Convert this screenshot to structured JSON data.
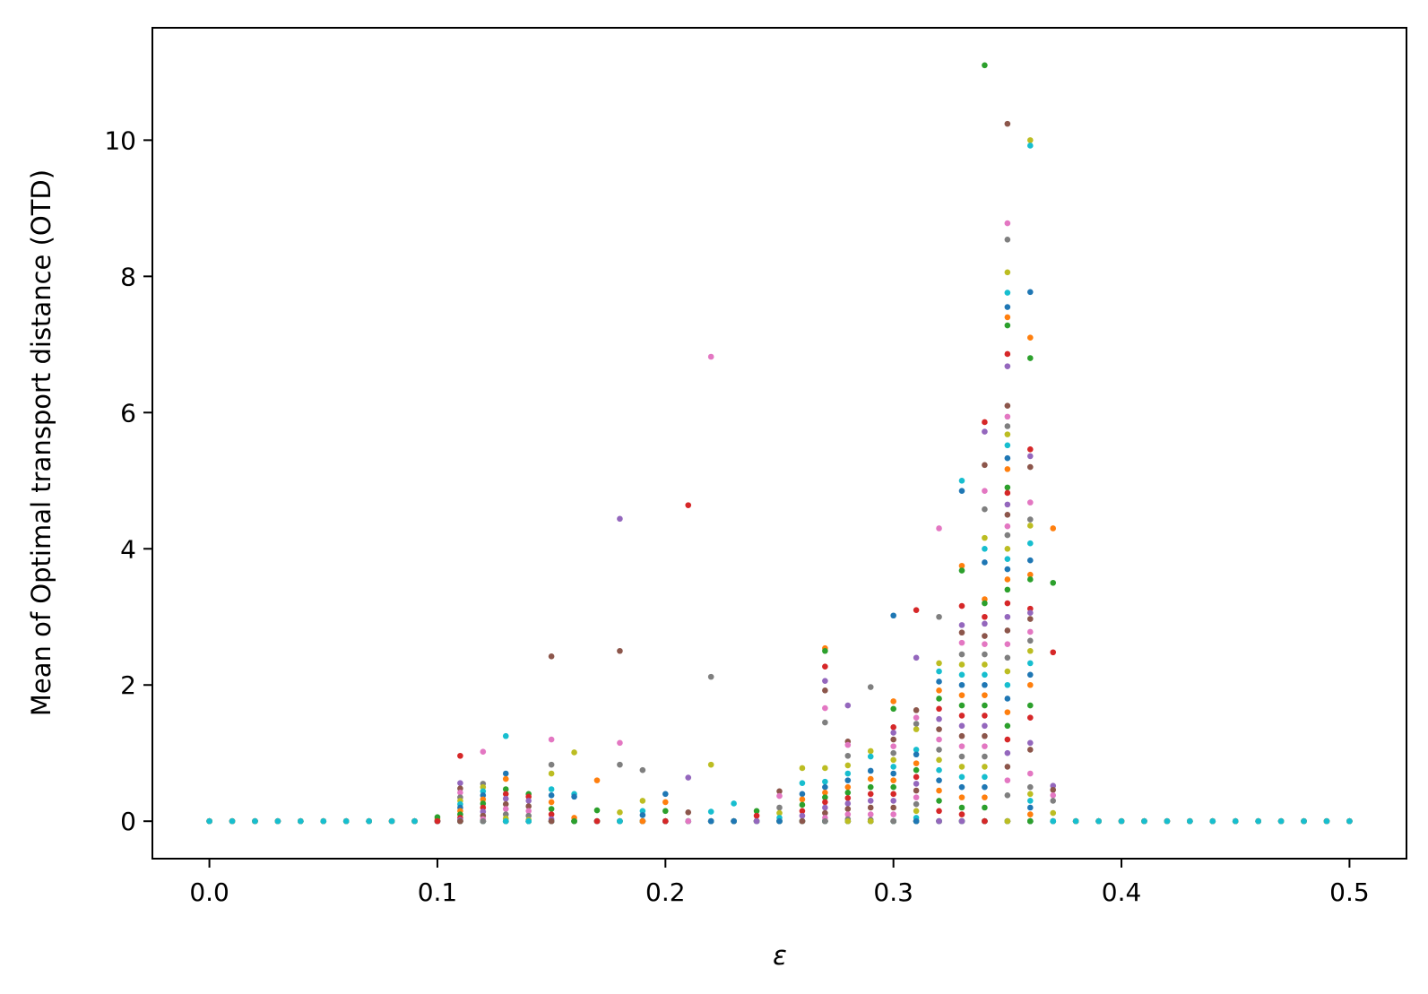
{
  "chart_data": {
    "type": "scatter",
    "title": "",
    "xlabel": "ε",
    "ylabel": "Mean of Optimal transport distance (OTD)",
    "xlim": [
      -0.025,
      0.525
    ],
    "ylim": [
      -0.55,
      11.65
    ],
    "xticks": [
      0.0,
      0.1,
      0.2,
      0.3,
      0.4,
      0.5
    ],
    "xtick_labels": [
      "0.0",
      "0.1",
      "0.2",
      "0.3",
      "0.4",
      "0.5"
    ],
    "yticks": [
      0,
      2,
      4,
      6,
      8,
      10
    ],
    "ytick_labels": [
      "0",
      "2",
      "4",
      "6",
      "8",
      "10"
    ],
    "grid": false,
    "legend": "none",
    "palette": [
      "#1f77b4",
      "#ff7f0e",
      "#2ca02c",
      "#d62728",
      "#9467bd",
      "#8c564b",
      "#e377c2",
      "#7f7f7f",
      "#bcbd22",
      "#17becf"
    ],
    "x_values": [
      0.0,
      0.01,
      0.02,
      0.03,
      0.04,
      0.05,
      0.06,
      0.07,
      0.08,
      0.09,
      0.1,
      0.11,
      0.12,
      0.13,
      0.14,
      0.15,
      0.16,
      0.17,
      0.18,
      0.19,
      0.2,
      0.21,
      0.22,
      0.23,
      0.24,
      0.25,
      0.26,
      0.27,
      0.28,
      0.29,
      0.3,
      0.31,
      0.32,
      0.33,
      0.34,
      0.35,
      0.36,
      0.37,
      0.38,
      0.39,
      0.4,
      0.41,
      0.42,
      0.43,
      0.44,
      0.45,
      0.46,
      0.47,
      0.48,
      0.49,
      0.5
    ],
    "columns": [
      {
        "x": 0.1,
        "y": [
          0.0,
          0.03,
          0.06,
          0.0
        ]
      },
      {
        "x": 0.11,
        "y": [
          0.96,
          0.56,
          0.48,
          0.42,
          0.35,
          0.3,
          0.25,
          0.2,
          0.15,
          0.1,
          0.05,
          0.02,
          0.0
        ]
      },
      {
        "x": 0.12,
        "y": [
          1.02,
          0.55,
          0.5,
          0.44,
          0.38,
          0.32,
          0.26,
          0.2,
          0.14,
          0.08,
          0.03,
          0.0
        ]
      },
      {
        "x": 0.13,
        "y": [
          1.25,
          0.7,
          0.62,
          0.47,
          0.4,
          0.33,
          0.25,
          0.18,
          0.1,
          0.04,
          0.0
        ]
      },
      {
        "x": 0.14,
        "y": [
          0.4,
          0.36,
          0.3,
          0.22,
          0.15,
          0.08,
          0.02,
          0.0
        ]
      },
      {
        "x": 0.15,
        "y": [
          2.42,
          1.2,
          0.83,
          0.7,
          0.47,
          0.38,
          0.28,
          0.18,
          0.1,
          0.03,
          0.0
        ]
      },
      {
        "x": 0.16,
        "y": [
          1.01,
          0.4,
          0.36,
          0.05,
          0.0
        ]
      },
      {
        "x": 0.17,
        "y": [
          0.6,
          0.16,
          0.0
        ]
      },
      {
        "x": 0.18,
        "y": [
          4.44,
          2.5,
          1.15,
          0.83,
          0.13,
          0.0
        ]
      },
      {
        "x": 0.19,
        "y": [
          0.75,
          0.3,
          0.15,
          0.09,
          0.0
        ]
      },
      {
        "x": 0.2,
        "y": [
          0.4,
          0.28,
          0.15,
          0.0
        ]
      },
      {
        "x": 0.21,
        "y": [
          4.64,
          0.64,
          0.13,
          0.0
        ]
      },
      {
        "x": 0.22,
        "y": [
          6.82,
          2.12,
          0.83,
          0.14,
          0.0
        ]
      },
      {
        "x": 0.23,
        "y": [
          0.26,
          0.0
        ]
      },
      {
        "x": 0.24,
        "y": [
          0.15,
          0.08,
          0.0
        ]
      },
      {
        "x": 0.25,
        "y": [
          0.44,
          0.37,
          0.2,
          0.12,
          0.05,
          0.0
        ]
      },
      {
        "x": 0.26,
        "y": [
          0.78,
          0.56,
          0.4,
          0.32,
          0.24,
          0.15,
          0.08,
          0.0
        ]
      },
      {
        "x": 0.27,
        "y": [
          2.54,
          2.5,
          2.27,
          2.06,
          1.92,
          1.66,
          1.45,
          0.78,
          0.58,
          0.5,
          0.42,
          0.35,
          0.28,
          0.2,
          0.12,
          0.05,
          0.0
        ]
      },
      {
        "x": 0.28,
        "y": [
          1.7,
          1.17,
          1.12,
          0.96,
          0.82,
          0.7,
          0.6,
          0.5,
          0.42,
          0.34,
          0.26,
          0.18,
          0.1,
          0.03,
          0.0
        ]
      },
      {
        "x": 0.29,
        "y": [
          1.97,
          1.03,
          0.95,
          0.74,
          0.62,
          0.5,
          0.4,
          0.3,
          0.2,
          0.1,
          0.02,
          0.0
        ]
      },
      {
        "x": 0.3,
        "y": [
          3.02,
          1.76,
          1.65,
          1.38,
          1.3,
          1.2,
          1.1,
          1.0,
          0.9,
          0.8,
          0.7,
          0.6,
          0.5,
          0.4,
          0.3,
          0.2,
          0.1,
          0.0
        ]
      },
      {
        "x": 0.31,
        "y": [
          3.1,
          2.4,
          1.63,
          1.52,
          1.43,
          1.35,
          1.05,
          0.98,
          0.85,
          0.75,
          0.65,
          0.55,
          0.45,
          0.35,
          0.25,
          0.15,
          0.05,
          0.0
        ]
      },
      {
        "x": 0.32,
        "y": [
          4.3,
          3.0,
          2.32,
          2.2,
          2.05,
          1.92,
          1.8,
          1.65,
          1.5,
          1.35,
          1.2,
          1.05,
          0.9,
          0.75,
          0.6,
          0.45,
          0.3,
          0.15,
          0.0
        ]
      },
      {
        "x": 0.33,
        "y": [
          5.0,
          4.85,
          3.75,
          3.68,
          3.16,
          2.88,
          2.77,
          2.62,
          2.45,
          2.3,
          2.15,
          2.0,
          1.85,
          1.7,
          1.55,
          1.4,
          1.25,
          1.1,
          0.95,
          0.8,
          0.65,
          0.5,
          0.35,
          0.2,
          0.1,
          0.0
        ]
      },
      {
        "x": 0.34,
        "y": [
          11.1,
          5.86,
          5.72,
          5.23,
          4.85,
          4.58,
          4.16,
          4.0,
          3.8,
          3.26,
          3.2,
          3.0,
          2.9,
          2.72,
          2.6,
          2.45,
          2.3,
          2.15,
          2.0,
          1.85,
          1.7,
          1.55,
          1.4,
          1.25,
          1.1,
          0.95,
          0.8,
          0.65,
          0.5,
          0.35,
          0.2,
          0.0
        ]
      },
      {
        "x": 0.35,
        "y": [
          10.24,
          8.78,
          8.54,
          8.06,
          7.76,
          7.55,
          7.4,
          7.28,
          6.86,
          6.68,
          6.1,
          5.94,
          5.8,
          5.68,
          5.52,
          5.33,
          5.17,
          4.9,
          4.82,
          4.65,
          4.5,
          4.33,
          4.2,
          4.0,
          3.85,
          3.7,
          3.55,
          3.4,
          3.2,
          3.0,
          2.8,
          2.6,
          2.4,
          2.2,
          2.0,
          1.8,
          1.6,
          1.4,
          1.2,
          1.0,
          0.8,
          0.6,
          0.38,
          0.0
        ]
      },
      {
        "x": 0.36,
        "y": [
          10.0,
          9.92,
          7.77,
          7.1,
          6.8,
          5.46,
          5.36,
          5.2,
          4.68,
          4.43,
          4.34,
          4.08,
          3.83,
          3.62,
          3.55,
          3.12,
          3.06,
          2.97,
          2.78,
          2.65,
          2.5,
          2.32,
          2.15,
          2.0,
          1.7,
          1.52,
          1.15,
          1.05,
          0.7,
          0.5,
          0.4,
          0.3,
          0.2,
          0.1,
          0.0
        ]
      },
      {
        "x": 0.37,
        "y": [
          4.3,
          3.5,
          2.48,
          0.52,
          0.46,
          0.38,
          0.3,
          0.12,
          0.0
        ]
      }
    ],
    "notes_outliers": []
  }
}
